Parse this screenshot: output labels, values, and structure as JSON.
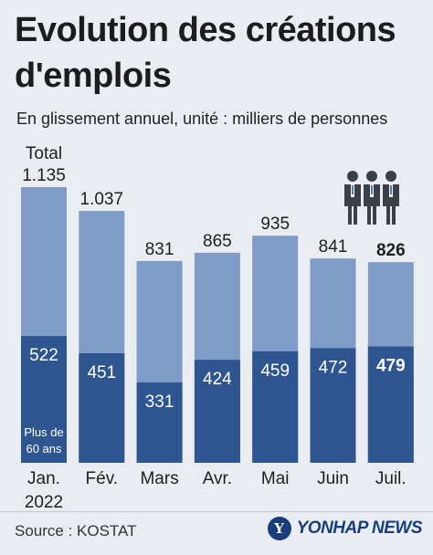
{
  "title_line1": "Evolution des créations",
  "title_line2": "d'emplois",
  "subtitle": "En glissement annuel, unité : milliers de personnes",
  "source": "Source : KOSTAT",
  "logo_text": "YONHAP NEWS",
  "chart_data": {
    "type": "bar",
    "categories": [
      "Jan.",
      "Fév.",
      "Mars",
      "Avr.",
      "Mai",
      "Juin",
      "Juil."
    ],
    "category_sublabels": [
      "2022",
      "",
      "",
      "",
      "",
      "",
      ""
    ],
    "series": [
      {
        "name": "Total",
        "values": [
          1135,
          1037,
          831,
          865,
          935,
          841,
          826
        ],
        "labels": [
          "1.135",
          "1.037",
          "831",
          "865",
          "935",
          "841",
          "826"
        ]
      },
      {
        "name": "Plus de 60 ans",
        "values": [
          522,
          451,
          331,
          424,
          459,
          472,
          479
        ],
        "labels": [
          "522",
          "451",
          "331",
          "424",
          "459",
          "472",
          "479"
        ]
      }
    ],
    "total_label": "Total",
    "inner_label": [
      "Plus de",
      "60 ans"
    ],
    "bold_last": true,
    "colors": {
      "total": "#7f9cc9",
      "sub": "#2f5590",
      "background": "#e9edf1"
    },
    "ylim": [
      0,
      1135
    ],
    "grid": false,
    "legend": "none"
  }
}
